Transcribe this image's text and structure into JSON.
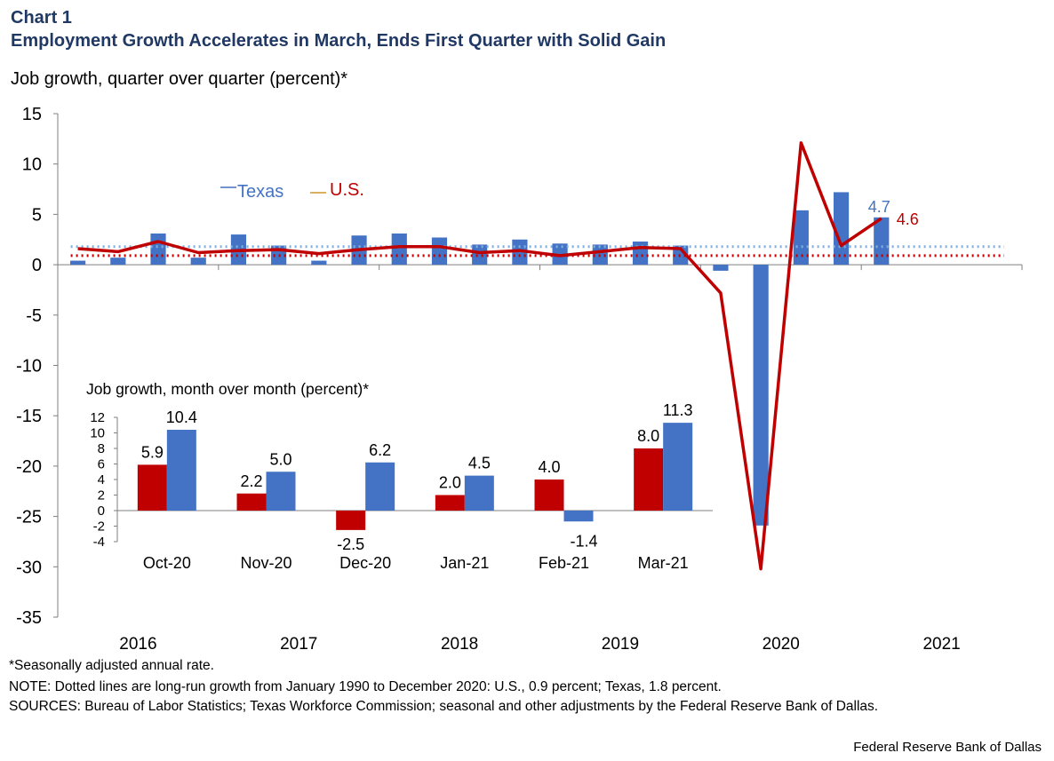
{
  "header": {
    "chart_label": "Chart 1",
    "title": "Employment  Growth Accelerates in March, Ends First Quarter with Solid Gain",
    "y_label": "Job growth,  quarter over quarter  (percent)*"
  },
  "footer": {
    "note_1": "*Seasonally adjusted annual rate.",
    "note_2": "NOTE: Dotted lines are long-run growth from January 1990 to December 2020: U.S., 0.9 percent; Texas, 1.8 percent.",
    "note_3": "SOURCES: Bureau of Labor Statistics; Texas Workforce Commission;  seasonal and other adjustments by the Federal Reserve Bank of Dallas.",
    "credit": "Federal Reserve  Bank of Dallas"
  },
  "colors": {
    "texas": "#4472c4",
    "us": "#c00000",
    "texas_longrun": "#7fb0e0",
    "us_longrun": "#c00000",
    "title": "#1f3864"
  },
  "chart_data": [
    {
      "type": "bar",
      "title": "",
      "ylabel": "Job growth,  quarter over quarter  (percent)*",
      "ylim": [
        -35,
        15
      ],
      "yticks": [
        15,
        10,
        5,
        0,
        -5,
        -10,
        -15,
        -20,
        -25,
        -30,
        -35
      ],
      "year_labels": [
        "2016",
        "2017",
        "2018",
        "2019",
        "2020",
        "2021"
      ],
      "quarters": [
        "2016Q1",
        "2016Q2",
        "2016Q3",
        "2016Q4",
        "2017Q1",
        "2017Q2",
        "2017Q3",
        "2017Q4",
        "2018Q1",
        "2018Q2",
        "2018Q3",
        "2018Q4",
        "2019Q1",
        "2019Q2",
        "2019Q3",
        "2019Q4",
        "2020Q1",
        "2020Q2",
        "2020Q3",
        "2020Q4",
        "2021Q1"
      ],
      "legend": {
        "placement": "upper-left",
        "texas_label": "Texas",
        "us_label": "U.S."
      },
      "series": [
        {
          "name": "Texas",
          "type": "bar",
          "values": [
            0.4,
            0.7,
            3.1,
            0.7,
            3.0,
            1.9,
            0.4,
            2.9,
            3.1,
            2.7,
            2.0,
            2.5,
            2.1,
            2.0,
            2.3,
            1.9,
            -0.6,
            -25.9,
            5.4,
            7.2,
            4.7
          ]
        },
        {
          "name": "U.S.",
          "type": "line",
          "values": [
            1.6,
            1.3,
            2.3,
            1.2,
            1.4,
            1.5,
            1.1,
            1.5,
            1.8,
            1.8,
            1.2,
            1.4,
            0.9,
            1.3,
            1.7,
            1.6,
            -2.8,
            -30.2,
            12.1,
            1.9,
            4.6
          ]
        }
      ],
      "long_run": [
        {
          "name": "Texas long-run",
          "value": 1.8
        },
        {
          "name": "U.S. long-run",
          "value": 0.9
        }
      ],
      "end_labels": {
        "texas": "4.7",
        "us": "4.6"
      }
    },
    {
      "type": "bar",
      "title": "Job growth, month over month (percent)*",
      "categories": [
        "Oct-20",
        "Nov-20",
        "Dec-20",
        "Jan-21",
        "Feb-21",
        "Mar-21"
      ],
      "ylim": [
        -4,
        12
      ],
      "yticks": [
        12,
        10,
        8,
        6,
        4,
        2,
        0,
        -2,
        -4
      ],
      "series": [
        {
          "name": "U.S.",
          "values": [
            5.9,
            2.2,
            -2.5,
            2.0,
            4.0,
            8.0
          ],
          "labels": [
            "5.9",
            "2.2",
            "-2.5",
            "2.0",
            "4.0",
            "8.0"
          ]
        },
        {
          "name": "Texas",
          "values": [
            10.4,
            5.0,
            6.2,
            4.5,
            -1.4,
            11.3
          ],
          "labels": [
            "10.4",
            "5.0",
            "6.2",
            "4.5",
            "-1.4",
            "11.3"
          ]
        }
      ]
    }
  ]
}
